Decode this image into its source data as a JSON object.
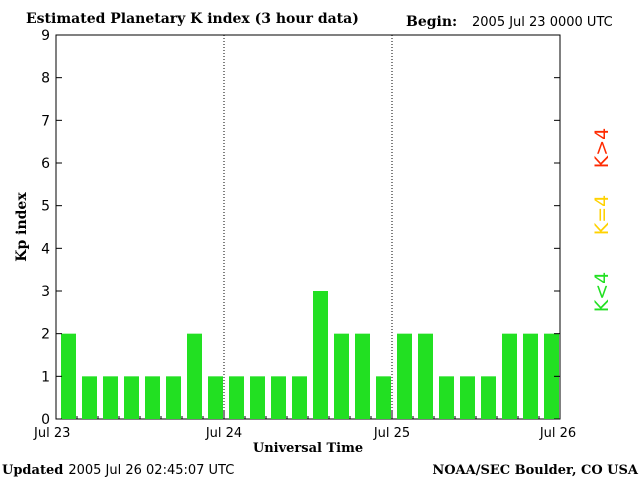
{
  "header": {
    "title": "Estimated Planetary K index (3 hour data)",
    "begin_label": "Begin:",
    "begin_value": "2005 Jul 23 0000 UTC"
  },
  "footer": {
    "updated_label": "Updated",
    "updated_value": "2005 Jul 26 02:45:07 UTC",
    "source": "NOAA/SEC Boulder, CO USA"
  },
  "legend": {
    "items": [
      {
        "label": "K>4",
        "color": "#ff2a00"
      },
      {
        "label": "K=4",
        "color": "#ffd200"
      },
      {
        "label": "K<4",
        "color": "#22e022"
      }
    ]
  },
  "chart_data": {
    "type": "bar",
    "title": "Estimated Planetary K index (3 hour data)",
    "xlabel": "Universal Time",
    "ylabel": "Kp index",
    "ylim": [
      0,
      9
    ],
    "yticks": [
      "0",
      "1",
      "2",
      "3",
      "4",
      "5",
      "6",
      "7",
      "8",
      "9"
    ],
    "xlim": [
      0,
      72
    ],
    "xticks": [
      {
        "label": "Jul 23",
        "hours": 0
      },
      {
        "label": "Jul 24",
        "hours": 24
      },
      {
        "label": "Jul 25",
        "hours": 48
      },
      {
        "label": "Jul 26",
        "hours": 72
      }
    ],
    "day_separators_hours": [
      24,
      48
    ],
    "interval_hours": 3,
    "values": [
      2,
      1,
      1,
      1,
      1,
      1,
      2,
      1,
      1,
      1,
      1,
      1,
      3,
      2,
      2,
      1,
      2,
      2,
      1,
      1,
      1,
      2,
      2,
      2
    ],
    "colors": {
      "below4": "#22e022",
      "equal4": "#ffd200",
      "above4": "#ff2a00"
    },
    "grid": false
  }
}
